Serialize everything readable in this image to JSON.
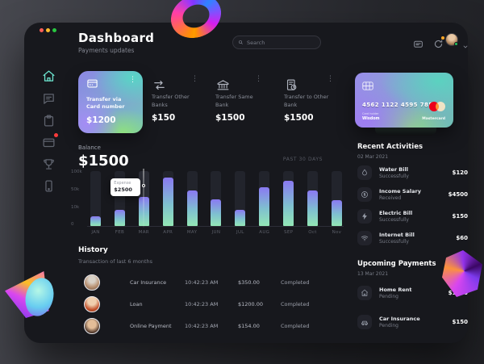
{
  "header": {
    "title": "Dashboard",
    "subtitle": "Payments updates",
    "search_placeholder": "Search"
  },
  "sidebar": {
    "items": [
      {
        "icon": "home-icon",
        "active": true
      },
      {
        "icon": "chat-icon",
        "active": false
      },
      {
        "icon": "orders-icon",
        "active": false
      },
      {
        "icon": "card-icon",
        "active": false,
        "badge": true
      },
      {
        "icon": "rewards-icon",
        "active": false
      },
      {
        "icon": "mobile-icon",
        "active": false
      }
    ]
  },
  "transfers": [
    {
      "label": "Transfer via Card number",
      "amount": "$1200",
      "icon": "credit-card-icon",
      "highlighted": true
    },
    {
      "label": "Transfer Other Banks",
      "amount": "$150",
      "icon": "swap-arrows-icon",
      "highlighted": false
    },
    {
      "label": "Transfer Same Bank",
      "amount": "$1500",
      "icon": "bank-icon",
      "highlighted": false
    },
    {
      "label": "Transfer to Other Bank",
      "amount": "$1500",
      "icon": "receipt-clock-icon",
      "highlighted": false
    }
  ],
  "balance": {
    "label": "Balance",
    "amount": "$1500",
    "period": "PAST 30 DAYS"
  },
  "chart_data": {
    "type": "bar",
    "title": "Balance — past 30 days",
    "categories": [
      "JAN",
      "FEB",
      "MAR",
      "APR",
      "MAY",
      "JUN",
      "JUL",
      "AUG",
      "SEP",
      "Oct",
      "Nov"
    ],
    "values": [
      17,
      30,
      53,
      88,
      65,
      48,
      30,
      70,
      83,
      65,
      47
    ],
    "values_unit": "percent_of_axis_height",
    "ytick_labels": [
      "100k",
      "50k",
      "10k",
      "0"
    ],
    "ylim": [
      0,
      100
    ],
    "grid": false,
    "legend": "none",
    "tooltip": {
      "category": "MAR",
      "label": "Expense",
      "value": "$2500"
    }
  },
  "bank_card": {
    "number": "4562 1122 4595 7852",
    "holder_label": "Card holder",
    "holder": "Wisdom",
    "brand": "Mastercard"
  },
  "recent_activities": {
    "title": "Recent Activities",
    "date": "02 Mar 2021",
    "items": [
      {
        "icon": "water-drop-icon",
        "title": "Water Bill",
        "status": "Successfully",
        "amount": "$120"
      },
      {
        "icon": "salary-coin-icon",
        "title": "Income Salary",
        "status": "Received",
        "amount": "$4500"
      },
      {
        "icon": "lightning-icon",
        "title": "Electric Bill",
        "status": "Successfully",
        "amount": "$150"
      },
      {
        "icon": "wifi-icon",
        "title": "Internet Bill",
        "status": "Successfully",
        "amount": "$60"
      }
    ]
  },
  "upcoming_payments": {
    "title": "Upcoming Payments",
    "date": "13 Mar 2021",
    "items": [
      {
        "icon": "home-icon",
        "title": "Home Rent",
        "status": "Pending",
        "amount": "$1500"
      },
      {
        "icon": "car-icon",
        "title": "Car Insurance",
        "status": "Pending",
        "amount": "$150"
      }
    ]
  },
  "history": {
    "title": "History",
    "subtitle": "Transaction of last 6 months",
    "rows": [
      {
        "name": "Car Insurance",
        "time": "10:42:23 AM",
        "amount": "$350.00",
        "status": "Completed"
      },
      {
        "name": "Loan",
        "time": "10:42:23 AM",
        "amount": "$1200.00",
        "status": "Completed"
      },
      {
        "name": "Online Payment",
        "time": "10:42:23 AM",
        "amount": "$154.00",
        "status": "Completed"
      }
    ]
  },
  "colors": {
    "panel_bg": "#17181d",
    "accent_teal": "#6ee7d2",
    "bar_gradient_top": "#8a79f2",
    "bar_gradient_bottom": "#93e7b5",
    "mastercard_red": "#eb001b",
    "mastercard_orange": "#f79e1b",
    "notification_red": "#ff3b3b",
    "badge_orange": "#ffa726",
    "status_green": "#22c55e",
    "traffic_red": "#ff5f57",
    "traffic_yellow": "#febc2e",
    "traffic_green": "#28c840"
  }
}
